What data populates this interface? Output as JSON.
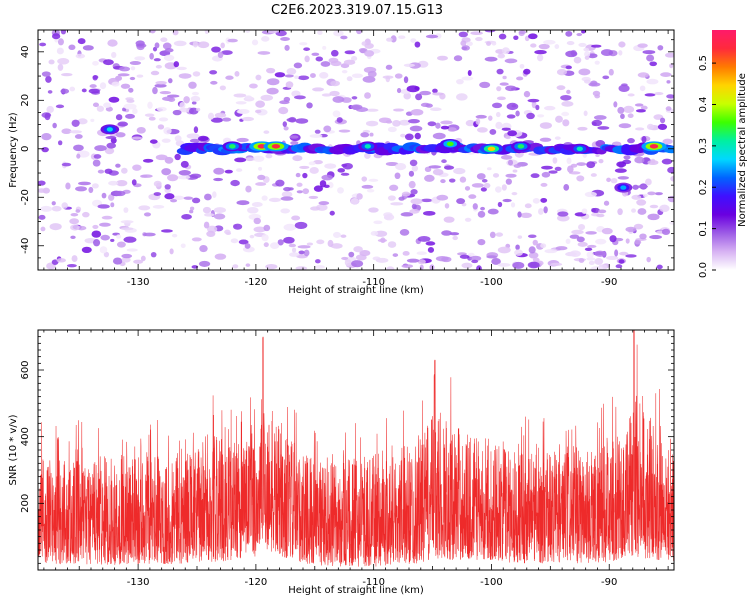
{
  "chart_data": [
    {
      "type": "heatmap",
      "title": "C2E6.2023.319.07.15.G13",
      "xlabel": "Height of straight line (km)",
      "ylabel": "Frequency (Hz)",
      "xlim": [
        -138.5,
        -84.5
      ],
      "ylim": [
        -50,
        49
      ],
      "xticks": [
        -130,
        -120,
        -110,
        -100,
        -90
      ],
      "yticks": [
        -40,
        -20,
        0,
        20,
        40
      ],
      "colorbar": {
        "label": "Normalized spectral amplitude",
        "range": [
          0.0,
          0.58
        ],
        "ticks": [
          0.0,
          0.1,
          0.2,
          0.3,
          0.4,
          0.5
        ],
        "colormap": [
          "#ffffff",
          "#d7b2f3",
          "#9d5ce6",
          "#6a00e0",
          "#3f10ff",
          "#0064ff",
          "#00d8ff",
          "#00f0a0",
          "#3cff00",
          "#c8ff00",
          "#ffd400",
          "#ff7a00",
          "#ff2a3c",
          "#ff1a6a"
        ]
      },
      "ridge": {
        "frequency_hz": 0,
        "x_start_km": -126,
        "x_end_km": -84.5,
        "hot_spots": [
          {
            "x": -119.5,
            "y": 1,
            "value": 0.55
          },
          {
            "x": -118.3,
            "y": 1,
            "value": 0.54
          },
          {
            "x": -100,
            "y": 0,
            "value": 0.45
          },
          {
            "x": -86.2,
            "y": 1,
            "value": 0.55
          },
          {
            "x": -103.5,
            "y": 2,
            "value": 0.36
          },
          {
            "x": -97.5,
            "y": 1,
            "value": 0.33
          },
          {
            "x": -122,
            "y": 1,
            "value": 0.33
          },
          {
            "x": -110.5,
            "y": 1,
            "value": 0.3
          },
          {
            "x": -92.5,
            "y": 0,
            "value": 0.3
          },
          {
            "x": -132.4,
            "y": 8,
            "value": 0.28
          },
          {
            "x": -88.8,
            "y": -16,
            "value": 0.25
          }
        ]
      }
    },
    {
      "type": "line",
      "xlabel": "Height of straight line (km)",
      "ylabel": "SNR (10 * v/v)",
      "xlim": [
        -138.5,
        -84.5
      ],
      "ylim": [
        0,
        720
      ],
      "xticks": [
        -130,
        -120,
        -110,
        -100,
        -90
      ],
      "yticks": [
        200,
        400,
        600
      ],
      "color": "#ee2a2a",
      "envelope": [
        {
          "x": -138,
          "low": 20,
          "high": 430
        },
        {
          "x": -135,
          "low": 15,
          "high": 450
        },
        {
          "x": -130,
          "low": 15,
          "high": 450
        },
        {
          "x": -125,
          "low": 20,
          "high": 470
        },
        {
          "x": -124,
          "low": 20,
          "high": 560
        },
        {
          "x": -122,
          "low": 30,
          "high": 500
        },
        {
          "x": -120,
          "low": 40,
          "high": 560
        },
        {
          "x": -119.4,
          "low": 60,
          "high": 700
        },
        {
          "x": -118,
          "low": 40,
          "high": 560
        },
        {
          "x": -116,
          "low": 20,
          "high": 470
        },
        {
          "x": -114,
          "low": 10,
          "high": 420
        },
        {
          "x": -110,
          "low": 10,
          "high": 460
        },
        {
          "x": -106,
          "low": 20,
          "high": 520
        },
        {
          "x": -104.8,
          "low": 30,
          "high": 630
        },
        {
          "x": -102,
          "low": 30,
          "high": 540
        },
        {
          "x": -100,
          "low": 30,
          "high": 520
        },
        {
          "x": -98,
          "low": 20,
          "high": 500
        },
        {
          "x": -95,
          "low": 20,
          "high": 480
        },
        {
          "x": -91,
          "low": 20,
          "high": 500
        },
        {
          "x": -88.5,
          "low": 30,
          "high": 540
        },
        {
          "x": -87.9,
          "low": 40,
          "high": 730
        },
        {
          "x": -86,
          "low": 30,
          "high": 560
        },
        {
          "x": -84.5,
          "low": 20,
          "high": 480
        }
      ]
    }
  ]
}
